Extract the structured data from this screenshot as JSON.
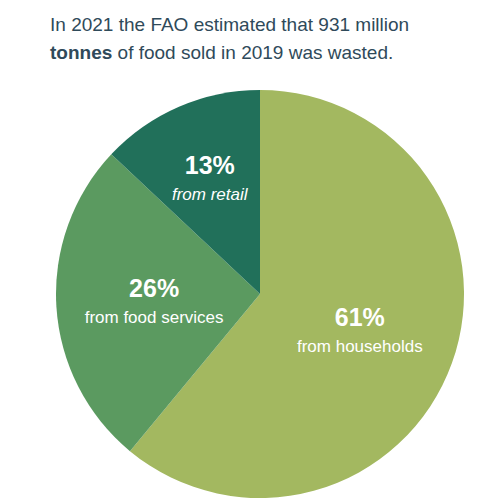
{
  "chart_data": {
    "type": "pie",
    "title": "In 2021 the FAO estimated that 931 million tonnes of food sold in 2019 was wasted.",
    "categories": [
      "from households",
      "from food services",
      "from retail"
    ],
    "values": [
      61,
      26,
      13
    ],
    "value_labels": [
      "61%",
      "26%",
      "13%"
    ],
    "colors": [
      "#a3b860",
      "#5b9a60",
      "#21705a"
    ],
    "data_labels": true
  }
}
